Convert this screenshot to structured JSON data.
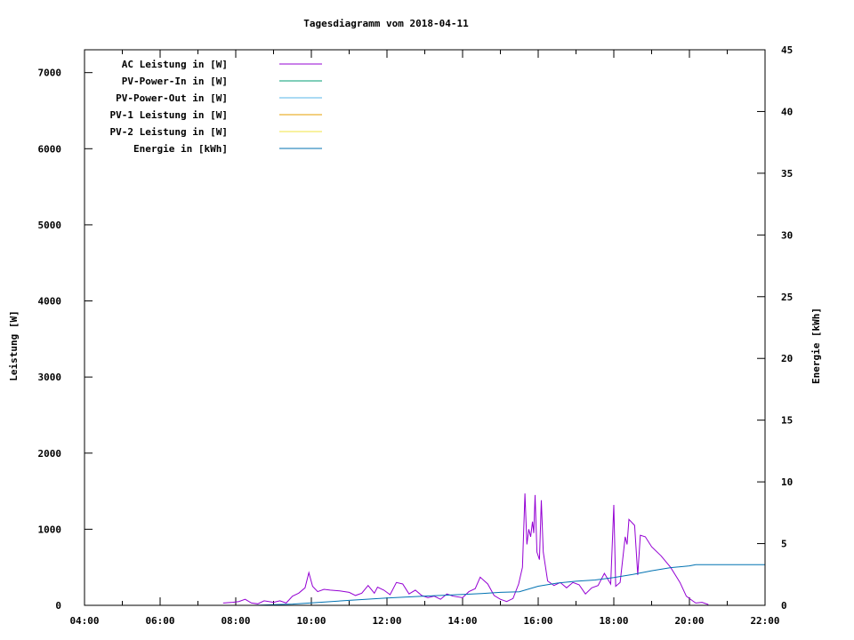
{
  "chart_data": {
    "type": "line",
    "title": "Tagesdiagramm vom 2018-04-11",
    "xlabel": "",
    "ylabel": "Leistung [W]",
    "y2label": "Energie [kWh]",
    "xlim": [
      "04:00",
      "22:00"
    ],
    "ylim": [
      0,
      7300
    ],
    "y2lim": [
      0,
      45
    ],
    "x_ticks": [
      "04:00",
      "06:00",
      "08:00",
      "10:00",
      "12:00",
      "14:00",
      "16:00",
      "18:00",
      "20:00",
      "22:00"
    ],
    "y_ticks": [
      0,
      1000,
      2000,
      3000,
      4000,
      5000,
      6000,
      7000
    ],
    "y2_ticks": [
      0,
      5,
      10,
      15,
      20,
      25,
      30,
      35,
      40,
      45
    ],
    "grid": false,
    "legend_placement": "top-left",
    "series": [
      {
        "name": "AC Leistung in [W]",
        "color": "#9400d3",
        "axis": "y",
        "points": [
          [
            "07:40",
            30
          ],
          [
            "07:55",
            40
          ],
          [
            "08:05",
            50
          ],
          [
            "08:15",
            80
          ],
          [
            "08:25",
            30
          ],
          [
            "08:35",
            20
          ],
          [
            "08:45",
            60
          ],
          [
            "09:00",
            40
          ],
          [
            "09:10",
            60
          ],
          [
            "09:20",
            30
          ],
          [
            "09:30",
            120
          ],
          [
            "09:40",
            160
          ],
          [
            "09:50",
            230
          ],
          [
            "09:56",
            430
          ],
          [
            "10:02",
            250
          ],
          [
            "10:10",
            180
          ],
          [
            "10:20",
            210
          ],
          [
            "10:30",
            200
          ],
          [
            "10:45",
            190
          ],
          [
            "11:00",
            170
          ],
          [
            "11:10",
            130
          ],
          [
            "11:20",
            160
          ],
          [
            "11:30",
            260
          ],
          [
            "11:40",
            160
          ],
          [
            "11:45",
            240
          ],
          [
            "11:55",
            200
          ],
          [
            "12:05",
            140
          ],
          [
            "12:15",
            300
          ],
          [
            "12:25",
            280
          ],
          [
            "12:35",
            150
          ],
          [
            "12:45",
            200
          ],
          [
            "12:55",
            130
          ],
          [
            "13:05",
            100
          ],
          [
            "13:15",
            120
          ],
          [
            "13:25",
            80
          ],
          [
            "13:35",
            150
          ],
          [
            "13:45",
            120
          ],
          [
            "14:00",
            100
          ],
          [
            "14:10",
            180
          ],
          [
            "14:20",
            220
          ],
          [
            "14:28",
            370
          ],
          [
            "14:40",
            280
          ],
          [
            "14:50",
            130
          ],
          [
            "15:00",
            80
          ],
          [
            "15:10",
            50
          ],
          [
            "15:20",
            90
          ],
          [
            "15:29",
            280
          ],
          [
            "15:35",
            500
          ],
          [
            "15:39",
            1470
          ],
          [
            "15:42",
            800
          ],
          [
            "15:45",
            1000
          ],
          [
            "15:48",
            900
          ],
          [
            "15:51",
            1100
          ],
          [
            "15:53",
            950
          ],
          [
            "15:55",
            1450
          ],
          [
            "15:58",
            700
          ],
          [
            "16:02",
            600
          ],
          [
            "16:05",
            1380
          ],
          [
            "16:08",
            700
          ],
          [
            "16:15",
            320
          ],
          [
            "16:25",
            260
          ],
          [
            "16:35",
            300
          ],
          [
            "16:45",
            230
          ],
          [
            "16:55",
            300
          ],
          [
            "17:05",
            270
          ],
          [
            "17:15",
            150
          ],
          [
            "17:25",
            230
          ],
          [
            "17:35",
            260
          ],
          [
            "17:45",
            420
          ],
          [
            "17:55",
            280
          ],
          [
            "18:00",
            1320
          ],
          [
            "18:03",
            250
          ],
          [
            "18:10",
            300
          ],
          [
            "18:18",
            900
          ],
          [
            "18:21",
            800
          ],
          [
            "18:24",
            1130
          ],
          [
            "18:33",
            1050
          ],
          [
            "18:38",
            400
          ],
          [
            "18:42",
            920
          ],
          [
            "18:50",
            900
          ],
          [
            "19:00",
            770
          ],
          [
            "19:15",
            650
          ],
          [
            "19:30",
            500
          ],
          [
            "19:45",
            300
          ],
          [
            "19:55",
            120
          ],
          [
            "20:05",
            60
          ],
          [
            "20:10",
            30
          ],
          [
            "20:20",
            40
          ],
          [
            "20:30",
            10
          ]
        ]
      },
      {
        "name": "PV-Power-In in [W]",
        "color": "#009e73",
        "axis": "y",
        "points": []
      },
      {
        "name": "PV-Power-Out in [W]",
        "color": "#56b4e9",
        "axis": "y",
        "points": []
      },
      {
        "name": "PV-1 Leistung in [W]",
        "color": "#e69f00",
        "axis": "y",
        "points": []
      },
      {
        "name": "PV-2 Leistung in [W]",
        "color": "#f0e442",
        "axis": "y",
        "points": []
      },
      {
        "name": "Energie in [kWh]",
        "color": "#0072b2",
        "axis": "y2",
        "points": [
          [
            "08:30",
            0
          ],
          [
            "09:00",
            0.05
          ],
          [
            "09:30",
            0.1
          ],
          [
            "10:00",
            0.2
          ],
          [
            "11:00",
            0.4
          ],
          [
            "12:00",
            0.6
          ],
          [
            "13:00",
            0.75
          ],
          [
            "14:00",
            0.88
          ],
          [
            "14:30",
            0.96
          ],
          [
            "15:00",
            1.05
          ],
          [
            "15:30",
            1.1
          ],
          [
            "16:00",
            1.55
          ],
          [
            "16:30",
            1.8
          ],
          [
            "17:00",
            1.95
          ],
          [
            "17:30",
            2.05
          ],
          [
            "18:00",
            2.25
          ],
          [
            "18:30",
            2.5
          ],
          [
            "19:00",
            2.8
          ],
          [
            "19:30",
            3.05
          ],
          [
            "20:00",
            3.2
          ],
          [
            "20:10",
            3.3
          ],
          [
            "22:00",
            3.3
          ]
        ]
      }
    ]
  }
}
